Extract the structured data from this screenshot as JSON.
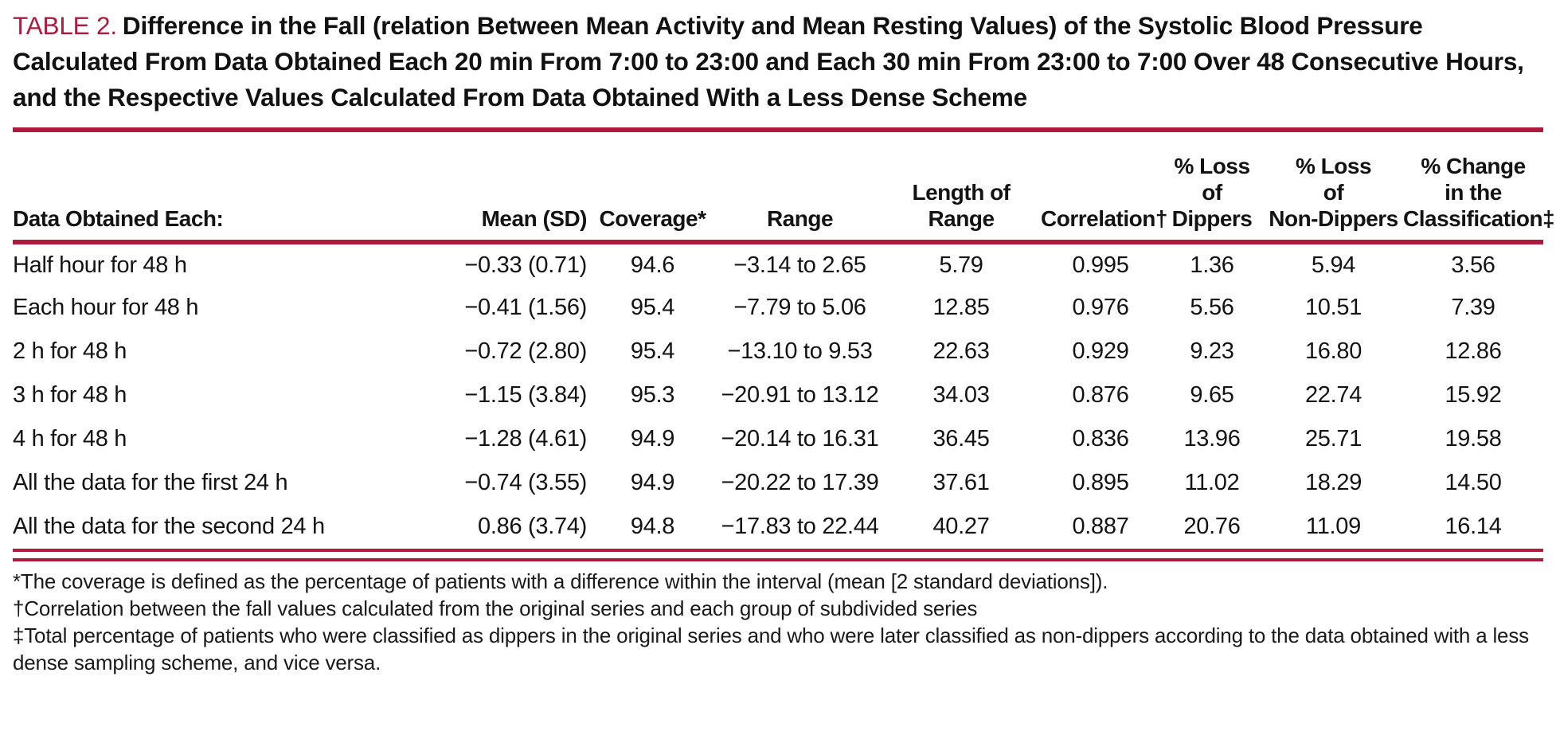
{
  "accent_color": "#AC1A3E",
  "title": {
    "label": "TABLE 2.",
    "text": "Difference in the Fall (relation Between Mean Activity and Mean Resting Values) of the Systolic Blood Pressure Calculated From Data Obtained Each 20 min From 7:00 to 23:00 and Each 30 min From 23:00 to 7:00 Over 48 Consecutive Hours, and the Respective Values Calculated From Data Obtained With a Less Dense Scheme"
  },
  "table": {
    "columns": [
      {
        "id": "data-obtained",
        "label": "Data Obtained Each:",
        "align": "left"
      },
      {
        "id": "mean-sd",
        "label": "Mean (SD)",
        "align": "right"
      },
      {
        "id": "coverage",
        "label": "Coverage*",
        "align": "center"
      },
      {
        "id": "range",
        "label": "Range",
        "align": "center"
      },
      {
        "id": "length-of-range",
        "label": "Length of\nRange",
        "align": "center"
      },
      {
        "id": "correlation",
        "label": "Correlation†",
        "align": "center"
      },
      {
        "id": "loss-dippers",
        "label": "% Loss\nof\nDippers",
        "align": "center"
      },
      {
        "id": "loss-non-dippers",
        "label": "% Loss\nof\nNon-Dippers",
        "align": "center"
      },
      {
        "id": "change-classification",
        "label": "% Change\nin the\nClassification‡",
        "align": "center"
      }
    ],
    "rows": [
      [
        "Half hour for 48 h",
        "−0.33 (0.71)",
        "94.6",
        "−3.14 to 2.65",
        "5.79",
        "0.995",
        "1.36",
        "5.94",
        "3.56"
      ],
      [
        "Each hour for 48 h",
        "−0.41 (1.56)",
        "95.4",
        "−7.79 to 5.06",
        "12.85",
        "0.976",
        "5.56",
        "10.51",
        "7.39"
      ],
      [
        "2 h for 48 h",
        "−0.72 (2.80)",
        "95.4",
        "−13.10 to 9.53",
        "22.63",
        "0.929",
        "9.23",
        "16.80",
        "12.86"
      ],
      [
        "3 h for 48 h",
        "−1.15 (3.84)",
        "95.3",
        "−20.91 to 13.12",
        "34.03",
        "0.876",
        "9.65",
        "22.74",
        "15.92"
      ],
      [
        "4 h for 48 h",
        "−1.28 (4.61)",
        "94.9",
        "−20.14 to 16.31",
        "36.45",
        "0.836",
        "13.96",
        "25.71",
        "19.58"
      ],
      [
        "All the data for the first 24 h",
        "−0.74 (3.55)",
        "94.9",
        "−20.22 to 17.39",
        "37.61",
        "0.895",
        "11.02",
        "18.29",
        "14.50"
      ],
      [
        "All the data for the second 24 h",
        "0.86 (3.74)",
        "94.8",
        "−17.83 to 22.44",
        "40.27",
        "0.887",
        "20.76",
        "11.09",
        "16.14"
      ]
    ]
  },
  "footnotes": [
    "*The coverage is defined as the percentage of patients with a difference within the interval (mean [2 standard deviations]).",
    "†Correlation between the fall values calculated from the original series and each group of subdivided series",
    "‡Total percentage of patients who were classified as dippers in the original series and who were later classified as non-dippers according to the data obtained with a less dense sampling scheme, and vice versa."
  ]
}
